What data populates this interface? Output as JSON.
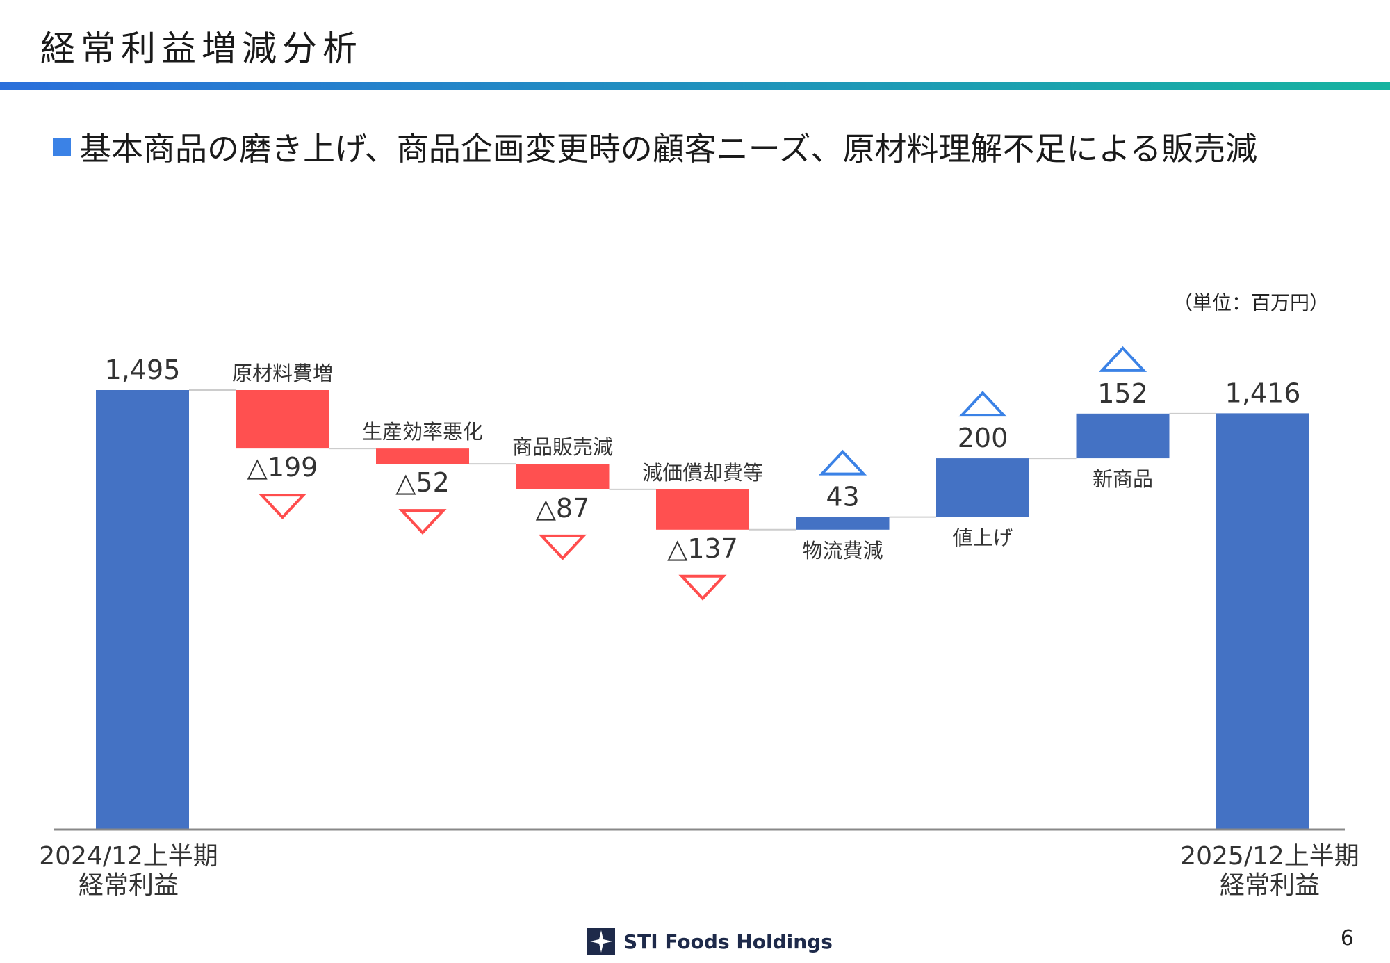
{
  "slide": {
    "title": "経常利益増減分析",
    "bullet": "基本商品の磨き上げ、商品企画変更時の顧客ニーズ、原材料理解不足による販売減",
    "unit": "（単位：百万円）",
    "company": "STI Foods Holdings",
    "page_number": "6"
  },
  "colors": {
    "total": "#4472c4",
    "decrease": "#ff5050",
    "increase": "#4472c4",
    "rule_start": "#2a6fdb",
    "rule_end": "#16b3a0",
    "bullet": "#3b82e6",
    "arrow_up": "#3b82e6",
    "arrow_down": "#ff4d4d",
    "axis": "#888888",
    "connector": "#cccccc",
    "logo": "#1e2a4a"
  },
  "chart_data": {
    "type": "bar",
    "variant": "waterfall",
    "ylim": [
      0,
      1495
    ],
    "steps": [
      {
        "kind": "total",
        "label": [
          "2024/12上半期",
          "経常利益"
        ],
        "value": 1495,
        "value_label": "1,495"
      },
      {
        "kind": "decrease",
        "label": [
          "原材料費増"
        ],
        "value": -199,
        "value_label": "△199"
      },
      {
        "kind": "decrease",
        "label": [
          "生産効率悪化"
        ],
        "value": -52,
        "value_label": "△52"
      },
      {
        "kind": "decrease",
        "label": [
          "商品販売減"
        ],
        "value": -87,
        "value_label": "△87"
      },
      {
        "kind": "decrease",
        "label": [
          "減価償却費等"
        ],
        "value": -137,
        "value_label": "△137"
      },
      {
        "kind": "increase",
        "label": [
          "物流費減"
        ],
        "value": 43,
        "value_label": "43"
      },
      {
        "kind": "increase",
        "label": [
          "値上げ"
        ],
        "value": 200,
        "value_label": "200"
      },
      {
        "kind": "increase",
        "label": [
          "新商品"
        ],
        "value": 152,
        "value_label": "152"
      },
      {
        "kind": "total",
        "label": [
          "2025/12上半期",
          "経常利益"
        ],
        "value": 1416,
        "value_label": "1,416"
      }
    ]
  }
}
